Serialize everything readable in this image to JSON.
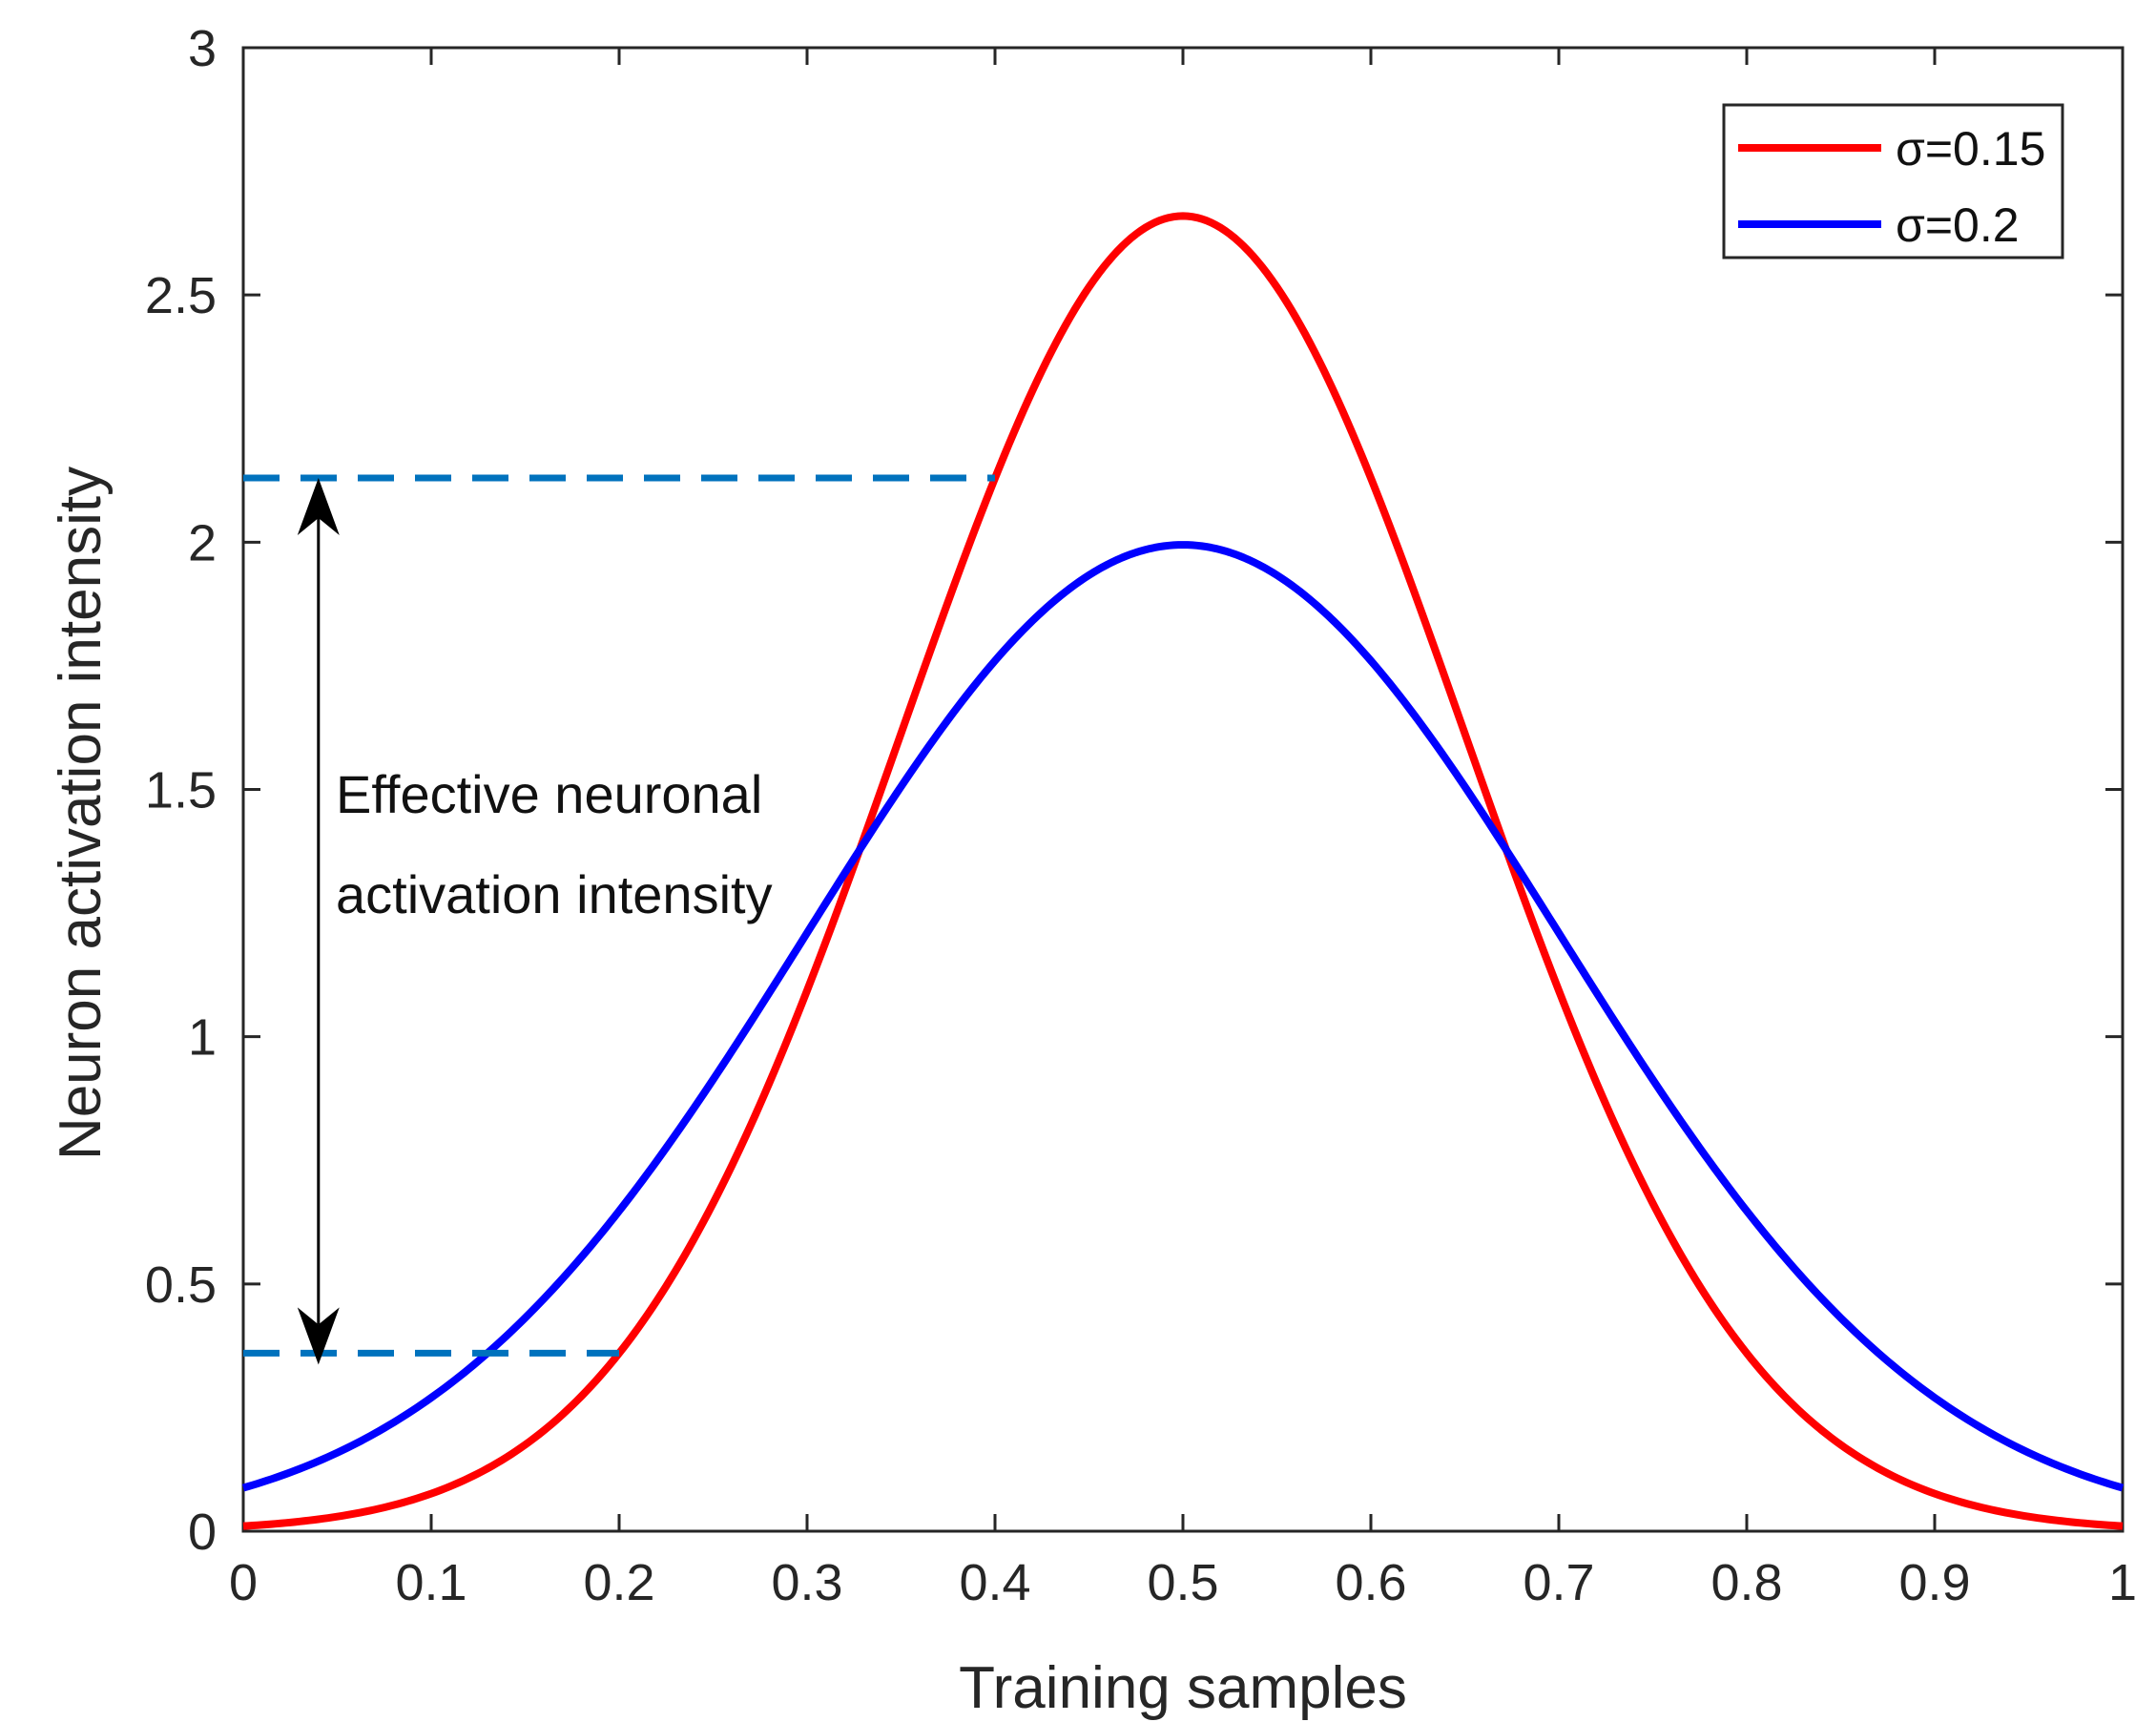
{
  "chart_data": {
    "type": "line",
    "title": "",
    "xlabel": "Training samples",
    "ylabel": "Neuron activation intensity",
    "xlim": [
      0,
      1
    ],
    "ylim": [
      0,
      3
    ],
    "xticks": [
      "0",
      "0.1",
      "0.2",
      "0.3",
      "0.4",
      "0.5",
      "0.6",
      "0.7",
      "0.8",
      "0.9",
      "1"
    ],
    "yticks": [
      "0",
      "0.5",
      "1",
      "1.5",
      "2",
      "2.5",
      "3"
    ],
    "grid": false,
    "legend_position": "top-right",
    "series": [
      {
        "name": "σ=0.15",
        "color": "#ff0000",
        "x": [
          0,
          0.05,
          0.1,
          0.15,
          0.2,
          0.25,
          0.3,
          0.35,
          0.4,
          0.45,
          0.5,
          0.55,
          0.6,
          0.65,
          0.7,
          0.75,
          0.8,
          0.85,
          0.9,
          0.95,
          1
        ],
        "y": [
          0.01,
          0.03,
          0.078,
          0.171,
          0.359,
          0.669,
          1.094,
          1.606,
          2.141,
          2.513,
          2.66,
          2.513,
          2.141,
          1.606,
          1.094,
          0.669,
          0.359,
          0.171,
          0.078,
          0.03,
          0.01
        ]
      },
      {
        "name": "σ=0.2",
        "color": "#0000ff",
        "x": [
          0,
          0.05,
          0.1,
          0.15,
          0.2,
          0.25,
          0.3,
          0.35,
          0.4,
          0.45,
          0.5,
          0.55,
          0.6,
          0.65,
          0.7,
          0.75,
          0.8,
          0.85,
          0.9,
          0.95,
          1
        ],
        "y": [
          0.088,
          0.159,
          0.27,
          0.433,
          0.648,
          0.913,
          1.21,
          1.509,
          1.765,
          1.938,
          1.995,
          1.938,
          1.765,
          1.509,
          1.21,
          0.913,
          0.648,
          0.433,
          0.27,
          0.159,
          0.088
        ]
      }
    ],
    "annotations": {
      "reference_lines": [
        {
          "y": 2.13,
          "x_from": 0,
          "x_to": 0.4,
          "color": "#0072bd",
          "style": "dashed"
        },
        {
          "y": 0.36,
          "x_from": 0,
          "x_to": 0.2,
          "color": "#0072bd",
          "style": "dashed"
        }
      ],
      "arrow": {
        "x": 0.04,
        "y_from": 0.36,
        "y_to": 2.13,
        "color": "#000000",
        "style": "double-headed"
      },
      "text_lines": [
        "Effective neuronal",
        "activation intensity"
      ],
      "text_anchor": {
        "x": 0.05,
        "y": 1.5
      }
    }
  }
}
